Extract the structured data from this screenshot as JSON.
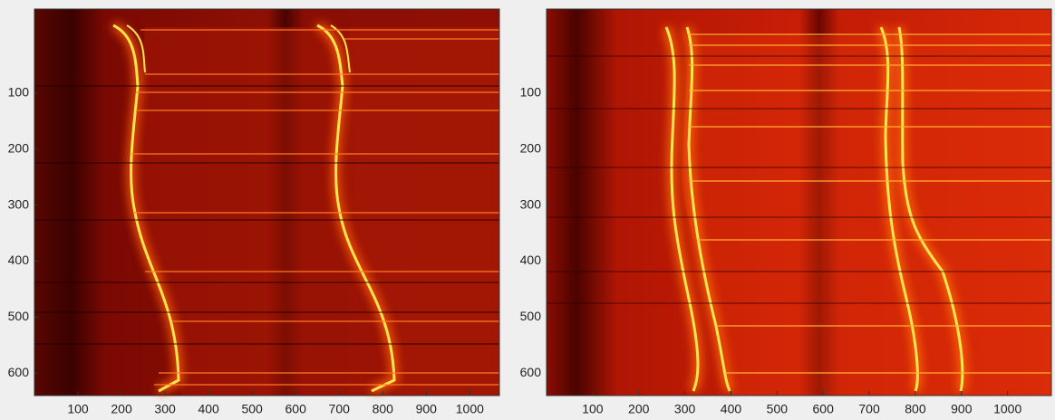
{
  "chart_data": [
    {
      "type": "image",
      "xlim": [
        0,
        1068
      ],
      "ylim": [
        -50,
        640
      ],
      "xticks": [
        100,
        200,
        300,
        400,
        500,
        600,
        700,
        800,
        900,
        1000
      ],
      "yticks": [
        100,
        200,
        300,
        400,
        500,
        600
      ]
    },
    {
      "type": "image",
      "xlim": [
        0,
        1095
      ],
      "ylim": [
        -50,
        640
      ],
      "xticks": [
        100,
        200,
        300,
        400,
        500,
        600,
        700,
        800,
        900,
        1000
      ],
      "yticks": [
        100,
        200,
        300,
        400,
        500,
        600
      ]
    }
  ]
}
